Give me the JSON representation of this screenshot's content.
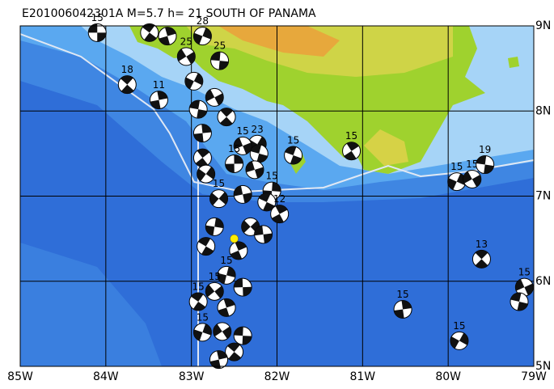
{
  "map": {
    "title": "E201006042301A M=5.7 h= 21 SOUTH OF PANAMA",
    "xlim": [
      -85,
      -79
    ],
    "ylim": [
      5,
      9
    ],
    "xticks": [
      {
        "value": -85,
        "label": "85W"
      },
      {
        "value": -84,
        "label": "84W"
      },
      {
        "value": -83,
        "label": "83W"
      },
      {
        "value": -82,
        "label": "82W"
      },
      {
        "value": -81,
        "label": "81W"
      },
      {
        "value": -80,
        "label": "80W"
      },
      {
        "value": -79,
        "label": "79W"
      }
    ],
    "yticks": [
      {
        "value": 5,
        "label": "5N"
      },
      {
        "value": 6,
        "label": "6N"
      },
      {
        "value": 7,
        "label": "7N"
      },
      {
        "value": 8,
        "label": "8N"
      },
      {
        "value": 9,
        "label": "9N"
      }
    ],
    "grid": true,
    "epicenter": {
      "lon": -82.5,
      "lat": 6.5,
      "color": "#ffee00"
    },
    "events": [
      {
        "lon": -84.1,
        "lat": 8.92,
        "depth": 15
      },
      {
        "lon": -83.49,
        "lat": 8.92,
        "depth": null
      },
      {
        "lon": -83.28,
        "lat": 8.88,
        "depth": null
      },
      {
        "lon": -82.87,
        "lat": 8.88,
        "depth": 28
      },
      {
        "lon": -83.06,
        "lat": 8.64,
        "depth": 25
      },
      {
        "lon": -82.67,
        "lat": 8.59,
        "depth": 25
      },
      {
        "lon": -83.75,
        "lat": 8.31,
        "depth": 18
      },
      {
        "lon": -83.38,
        "lat": 8.13,
        "depth": 11
      },
      {
        "lon": -82.97,
        "lat": 8.35,
        "depth": null
      },
      {
        "lon": -82.73,
        "lat": 8.16,
        "depth": null
      },
      {
        "lon": -82.92,
        "lat": 8.02,
        "depth": null
      },
      {
        "lon": -82.59,
        "lat": 7.93,
        "depth": null
      },
      {
        "lon": -82.87,
        "lat": 7.74,
        "depth": null
      },
      {
        "lon": -82.23,
        "lat": 7.61,
        "depth": 23
      },
      {
        "lon": -82.4,
        "lat": 7.59,
        "depth": 15
      },
      {
        "lon": -82.21,
        "lat": 7.5,
        "depth": null
      },
      {
        "lon": -82.87,
        "lat": 7.45,
        "depth": null
      },
      {
        "lon": -82.5,
        "lat": 7.38,
        "depth": 15
      },
      {
        "lon": -82.83,
        "lat": 7.26,
        "depth": null
      },
      {
        "lon": -82.26,
        "lat": 7.31,
        "depth": null
      },
      {
        "lon": -81.81,
        "lat": 7.48,
        "depth": 15
      },
      {
        "lon": -81.13,
        "lat": 7.53,
        "depth": 15
      },
      {
        "lon": -82.06,
        "lat": 7.06,
        "depth": 15
      },
      {
        "lon": -82.68,
        "lat": 6.97,
        "depth": 15
      },
      {
        "lon": -82.4,
        "lat": 7.02,
        "depth": null
      },
      {
        "lon": -82.12,
        "lat": 6.93,
        "depth": null
      },
      {
        "lon": -81.97,
        "lat": 6.79,
        "depth": 12
      },
      {
        "lon": -82.73,
        "lat": 6.64,
        "depth": null
      },
      {
        "lon": -82.31,
        "lat": 6.64,
        "depth": null
      },
      {
        "lon": -82.16,
        "lat": 6.55,
        "depth": null
      },
      {
        "lon": -82.83,
        "lat": 6.41,
        "depth": null
      },
      {
        "lon": -82.45,
        "lat": 6.36,
        "depth": null
      },
      {
        "lon": -82.59,
        "lat": 6.07,
        "depth": 15
      },
      {
        "lon": -82.73,
        "lat": 5.88,
        "depth": 15
      },
      {
        "lon": -82.4,
        "lat": 5.93,
        "depth": null
      },
      {
        "lon": -82.92,
        "lat": 5.76,
        "depth": 15
      },
      {
        "lon": -82.59,
        "lat": 5.69,
        "depth": null
      },
      {
        "lon": -82.87,
        "lat": 5.4,
        "depth": 15
      },
      {
        "lon": -82.64,
        "lat": 5.41,
        "depth": null
      },
      {
        "lon": -82.4,
        "lat": 5.36,
        "depth": null
      },
      {
        "lon": -82.5,
        "lat": 5.17,
        "depth": null
      },
      {
        "lon": -82.68,
        "lat": 5.08,
        "depth": null
      },
      {
        "lon": -79.9,
        "lat": 7.17,
        "depth": 15
      },
      {
        "lon": -79.72,
        "lat": 7.2,
        "depth": 15
      },
      {
        "lon": -79.57,
        "lat": 7.37,
        "depth": 19
      },
      {
        "lon": -79.61,
        "lat": 6.26,
        "depth": 13
      },
      {
        "lon": -80.53,
        "lat": 5.67,
        "depth": 15
      },
      {
        "lon": -79.87,
        "lat": 5.3,
        "depth": 15
      },
      {
        "lon": -79.11,
        "lat": 5.93,
        "depth": 15
      },
      {
        "lon": -79.17,
        "lat": 5.76,
        "depth": null
      }
    ]
  }
}
